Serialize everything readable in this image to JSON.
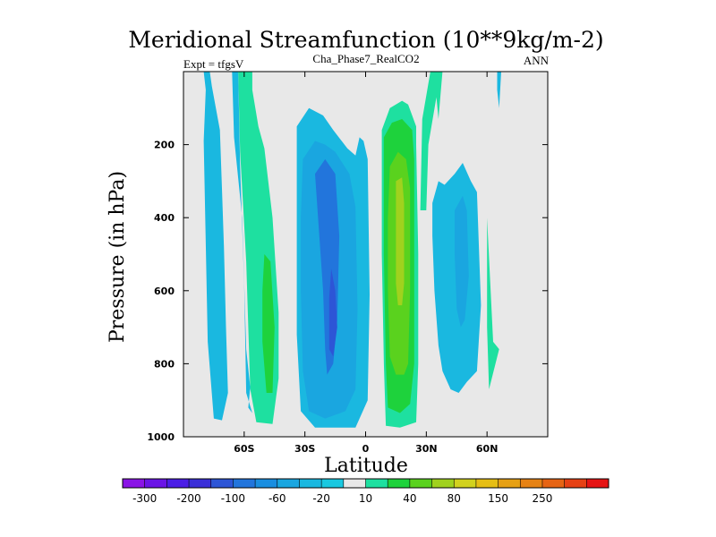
{
  "chart_data": {
    "type": "heatmap",
    "title": "Meridional Streamfunction (10**9kg/m-2)",
    "subtitle_left": "Expt = tfgsV",
    "subtitle_center": "Cha_Phase7_RealCO2",
    "subtitle_right": "ANN",
    "xlabel": "Latitude",
    "ylabel": "Pressure (in hPa)",
    "xlim": [
      -90,
      90
    ],
    "ylim": [
      1000,
      0
    ],
    "x_ticks": [
      {
        "value": -60,
        "label": "60S"
      },
      {
        "value": -30,
        "label": "30S"
      },
      {
        "value": 0,
        "label": "0"
      },
      {
        "value": 30,
        "label": "30N"
      },
      {
        "value": 60,
        "label": "60N"
      }
    ],
    "y_ticks": [
      {
        "value": 200,
        "label": "200"
      },
      {
        "value": 400,
        "label": "400"
      },
      {
        "value": 600,
        "label": "600"
      },
      {
        "value": 800,
        "label": "800"
      },
      {
        "value": 1000,
        "label": "1000"
      }
    ],
    "colorbar": {
      "colors": [
        "#8a14e6",
        "#6a14e6",
        "#4b1de6",
        "#3a2fd8",
        "#2d55d6",
        "#2275dc",
        "#1a8ee0",
        "#1aa6e0",
        "#1ab8e0",
        "#1ac8e0",
        "#e8e8e8",
        "#1ee0a0",
        "#1ed23c",
        "#5ad21e",
        "#a0d21e",
        "#d2d21e",
        "#e6be14",
        "#e6a014",
        "#e68214",
        "#e66414",
        "#e64114",
        "#e61414"
      ],
      "labels": [
        "-300",
        "-200",
        "-100",
        "-60",
        "-20",
        "10",
        "40",
        "80",
        "150",
        "250"
      ],
      "label_positions": [
        1,
        3,
        5,
        7,
        9,
        11,
        13,
        15,
        17,
        19
      ]
    },
    "regions": [
      {
        "fill": "#1ab8e0",
        "points": [
          [
            -80,
            0
          ],
          [
            -79,
            50
          ],
          [
            -80,
            190
          ],
          [
            -78,
            740
          ],
          [
            -75,
            950
          ],
          [
            -71,
            955
          ],
          [
            -68,
            880
          ],
          [
            -69,
            700
          ],
          [
            -70,
            480
          ],
          [
            -71,
            320
          ],
          [
            -72,
            160
          ],
          [
            -76,
            40
          ],
          [
            -77,
            0
          ]
        ]
      },
      {
        "fill": "#1ee0a0",
        "points": [
          [
            -80,
            0
          ],
          [
            -79,
            110
          ],
          [
            -80,
            0
          ]
        ]
      },
      {
        "fill": "#1ee0a0",
        "points": [
          [
            -63,
            0
          ],
          [
            -62,
            220
          ],
          [
            -59,
            520
          ],
          [
            -57,
            870
          ],
          [
            -54,
            960
          ],
          [
            -46,
            965
          ],
          [
            -43,
            840
          ],
          [
            -43,
            660
          ],
          [
            -46,
            400
          ],
          [
            -50,
            210
          ],
          [
            -53,
            150
          ],
          [
            -56,
            50
          ],
          [
            -56,
            0
          ]
        ]
      },
      {
        "fill": "#1ab8e0",
        "points": [
          [
            -66,
            0
          ],
          [
            -65,
            180
          ],
          [
            -61,
            400
          ],
          [
            -59,
            760
          ],
          [
            -57,
            865
          ],
          [
            -58,
            920
          ],
          [
            -56,
            935
          ],
          [
            -59,
            880
          ],
          [
            -60,
            580
          ],
          [
            -62,
            260
          ],
          [
            -63,
            0
          ]
        ]
      },
      {
        "fill": "#1ed23c",
        "points": [
          [
            -50,
            500
          ],
          [
            -47,
            520
          ],
          [
            -45,
            700
          ],
          [
            -46,
            880
          ],
          [
            -49,
            880
          ],
          [
            -51,
            740
          ],
          [
            -51,
            600
          ]
        ]
      },
      {
        "fill": "#1ab8e0",
        "points": [
          [
            -34,
            150
          ],
          [
            -28,
            100
          ],
          [
            -21,
            120
          ],
          [
            -16,
            160
          ],
          [
            -9,
            210
          ],
          [
            -5,
            230
          ],
          [
            -3,
            180
          ],
          [
            -1,
            190
          ],
          [
            1,
            240
          ],
          [
            2,
            610
          ],
          [
            1,
            900
          ],
          [
            -5,
            975
          ],
          [
            -25,
            975
          ],
          [
            -32,
            930
          ],
          [
            -34,
            720
          ],
          [
            -34,
            450
          ]
        ]
      },
      {
        "fill": "#1aa6e0",
        "points": [
          [
            -31,
            240
          ],
          [
            -25,
            190
          ],
          [
            -20,
            200
          ],
          [
            -15,
            220
          ],
          [
            -8,
            280
          ],
          [
            -5,
            370
          ],
          [
            -4,
            650
          ],
          [
            -5,
            870
          ],
          [
            -10,
            930
          ],
          [
            -20,
            950
          ],
          [
            -28,
            930
          ],
          [
            -31,
            820
          ],
          [
            -32,
            600
          ],
          [
            -32,
            400
          ]
        ]
      },
      {
        "fill": "#2275dc",
        "points": [
          [
            -25,
            280
          ],
          [
            -20,
            240
          ],
          [
            -15,
            280
          ],
          [
            -13,
            450
          ],
          [
            -14,
            680
          ],
          [
            -16,
            800
          ],
          [
            -19,
            830
          ],
          [
            -20,
            760
          ],
          [
            -21,
            600
          ]
        ]
      },
      {
        "fill": "#2d55d6",
        "points": [
          [
            -17,
            540
          ],
          [
            -15,
            600
          ],
          [
            -14,
            700
          ],
          [
            -16,
            780
          ],
          [
            -18,
            760
          ],
          [
            -18,
            620
          ]
        ]
      },
      {
        "fill": "#1ee0a0",
        "points": [
          [
            8,
            160
          ],
          [
            12,
            100
          ],
          [
            18,
            80
          ],
          [
            21,
            90
          ],
          [
            25,
            150
          ],
          [
            25,
            200
          ],
          [
            26,
            500
          ],
          [
            26,
            800
          ],
          [
            25,
            960
          ],
          [
            17,
            975
          ],
          [
            10,
            970
          ],
          [
            9,
            800
          ],
          [
            8,
            500
          ]
        ]
      },
      {
        "fill": "#1ed23c",
        "points": [
          [
            9,
            180
          ],
          [
            13,
            140
          ],
          [
            18,
            130
          ],
          [
            23,
            160
          ],
          [
            24,
            240
          ],
          [
            24,
            500
          ],
          [
            24,
            800
          ],
          [
            22,
            910
          ],
          [
            17,
            935
          ],
          [
            11,
            920
          ],
          [
            10,
            800
          ],
          [
            9,
            500
          ]
        ]
      },
      {
        "fill": "#5ad21e",
        "points": [
          [
            12,
            260
          ],
          [
            16,
            220
          ],
          [
            20,
            240
          ],
          [
            22,
            320
          ],
          [
            22,
            600
          ],
          [
            21,
            800
          ],
          [
            19,
            830
          ],
          [
            15,
            830
          ],
          [
            12,
            780
          ],
          [
            11,
            600
          ],
          [
            11,
            400
          ]
        ]
      },
      {
        "fill": "#a0d21e",
        "points": [
          [
            15,
            300
          ],
          [
            18,
            290
          ],
          [
            19,
            360
          ],
          [
            19,
            580
          ],
          [
            18,
            640
          ],
          [
            16,
            640
          ],
          [
            15,
            580
          ]
        ]
      },
      {
        "fill": "#1ee0a0",
        "points": [
          [
            27,
            380
          ],
          [
            28,
            130
          ],
          [
            32,
            0
          ],
          [
            38,
            0
          ],
          [
            36,
            130
          ],
          [
            35,
            70
          ],
          [
            31,
            200
          ],
          [
            30,
            380
          ]
        ]
      },
      {
        "fill": "#1ab8e0",
        "points": [
          [
            33,
            360
          ],
          [
            36,
            300
          ],
          [
            39,
            310
          ],
          [
            44,
            280
          ],
          [
            48,
            250
          ],
          [
            52,
            300
          ],
          [
            55,
            330
          ],
          [
            57,
            640
          ],
          [
            55,
            820
          ],
          [
            50,
            850
          ],
          [
            46,
            880
          ],
          [
            42,
            870
          ],
          [
            38,
            820
          ],
          [
            36,
            750
          ],
          [
            34,
            600
          ],
          [
            33,
            450
          ]
        ]
      },
      {
        "fill": "#1aa6e0",
        "points": [
          [
            44,
            380
          ],
          [
            48,
            340
          ],
          [
            50,
            380
          ],
          [
            51,
            560
          ],
          [
            49,
            680
          ],
          [
            47,
            700
          ],
          [
            45,
            650
          ],
          [
            44,
            500
          ]
        ]
      },
      {
        "fill": "#1ab8e0",
        "points": [
          [
            65,
            0
          ],
          [
            67,
            0
          ],
          [
            66,
            100
          ],
          [
            65,
            50
          ]
        ]
      },
      {
        "fill": "#1ee0a0",
        "points": [
          [
            60,
            400
          ],
          [
            63,
            740
          ],
          [
            66,
            760
          ],
          [
            61,
            870
          ],
          [
            60,
            700
          ]
        ]
      }
    ]
  }
}
